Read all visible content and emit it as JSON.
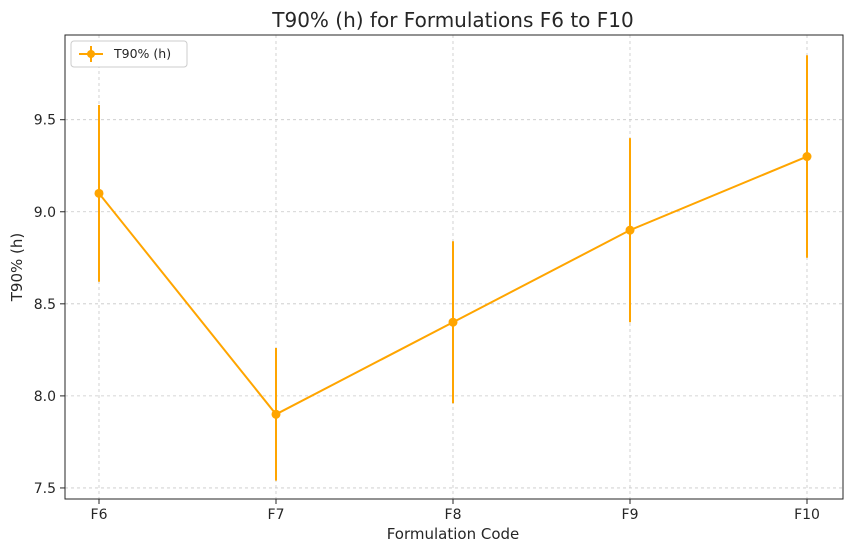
{
  "chart_data": {
    "type": "line",
    "title": "T90% (h) for Formulations F6 to F10",
    "xlabel": "Formulation Code",
    "ylabel": "T90% (h)",
    "categories": [
      "F6",
      "F7",
      "F8",
      "F9",
      "F10"
    ],
    "series": [
      {
        "name": "T90% (h)",
        "values": [
          9.1,
          7.9,
          8.4,
          8.9,
          9.3
        ],
        "error": [
          0.48,
          0.36,
          0.44,
          0.5,
          0.55
        ],
        "color": "#FFA500"
      }
    ],
    "ylim": [
      7.44,
      9.96
    ],
    "yticks": [
      7.5,
      8.0,
      8.5,
      9.0,
      9.5
    ],
    "ytick_labels": [
      "7.5",
      "8.0",
      "8.5",
      "9.0",
      "9.5"
    ],
    "grid": true,
    "legend_position": "top-left"
  }
}
